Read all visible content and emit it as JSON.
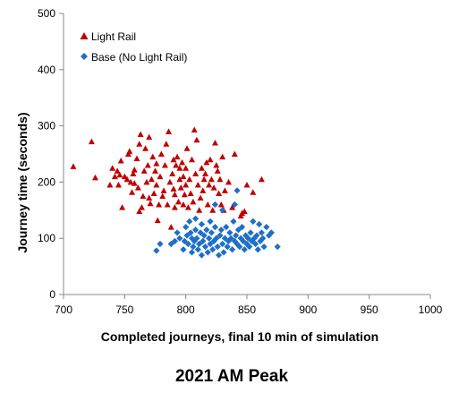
{
  "caption": "2021 AM Peak",
  "chart_data": {
    "type": "scatter",
    "title": "",
    "xlabel": "Completed journeys, final 10 min of simulation",
    "ylabel": "Journey time (seconds)",
    "xlim": [
      700,
      1000
    ],
    "ylim": [
      0,
      500
    ],
    "xticks": [
      700,
      750,
      800,
      850,
      900,
      950,
      1000
    ],
    "yticks": [
      0,
      100,
      200,
      300,
      400,
      500
    ],
    "grid": false,
    "legend_position": "top-left",
    "series": [
      {
        "name": "Light Rail",
        "marker": "triangle",
        "color": "#c00000",
        "points": [
          [
            708,
            228
          ],
          [
            723,
            272
          ],
          [
            726,
            208
          ],
          [
            738,
            195
          ],
          [
            740,
            225
          ],
          [
            742,
            210
          ],
          [
            744,
            220
          ],
          [
            745,
            195
          ],
          [
            746,
            213
          ],
          [
            747,
            238
          ],
          [
            748,
            155
          ],
          [
            750,
            210
          ],
          [
            752,
            205
          ],
          [
            753,
            250
          ],
          [
            754,
            255
          ],
          [
            755,
            200
          ],
          [
            756,
            182
          ],
          [
            757,
            215
          ],
          [
            758,
            222
          ],
          [
            758,
            198
          ],
          [
            760,
            242
          ],
          [
            761,
            190
          ],
          [
            762,
            148
          ],
          [
            762,
            268
          ],
          [
            763,
            285
          ],
          [
            764,
            155
          ],
          [
            765,
            175
          ],
          [
            766,
            220
          ],
          [
            767,
            260
          ],
          [
            768,
            200
          ],
          [
            769,
            230
          ],
          [
            770,
            172
          ],
          [
            770,
            280
          ],
          [
            771,
            162
          ],
          [
            772,
            205
          ],
          [
            773,
            245
          ],
          [
            774,
            180
          ],
          [
            775,
            220
          ],
          [
            776,
            233
          ],
          [
            776,
            195
          ],
          [
            777,
            132
          ],
          [
            778,
            160
          ],
          [
            779,
            210
          ],
          [
            780,
            250
          ],
          [
            781,
            175
          ],
          [
            782,
            185
          ],
          [
            783,
            230
          ],
          [
            784,
            268
          ],
          [
            785,
            160
          ],
          [
            786,
            290
          ],
          [
            787,
            200
          ],
          [
            788,
            120
          ],
          [
            789,
            215
          ],
          [
            790,
            188
          ],
          [
            790,
            240
          ],
          [
            791,
            178
          ],
          [
            791,
            155
          ],
          [
            792,
            230
          ],
          [
            793,
            245
          ],
          [
            794,
            165
          ],
          [
            795,
            205
          ],
          [
            795,
            225
          ],
          [
            796,
            190
          ],
          [
            797,
            235
          ],
          [
            798,
            210
          ],
          [
            798,
            160
          ],
          [
            799,
            178
          ],
          [
            800,
            195
          ],
          [
            800,
            225
          ],
          [
            801,
            260
          ],
          [
            802,
            155
          ],
          [
            803,
            205
          ],
          [
            804,
            180
          ],
          [
            805,
            240
          ],
          [
            806,
            165
          ],
          [
            807,
            293
          ],
          [
            808,
            215
          ],
          [
            809,
            275
          ],
          [
            810,
            195
          ],
          [
            811,
            150
          ],
          [
            812,
            172
          ],
          [
            813,
            225
          ],
          [
            814,
            185
          ],
          [
            815,
            205
          ],
          [
            816,
            215
          ],
          [
            817,
            235
          ],
          [
            818,
            160
          ],
          [
            819,
            195
          ],
          [
            820,
            240
          ],
          [
            821,
            205
          ],
          [
            822,
            150
          ],
          [
            823,
            190
          ],
          [
            824,
            270
          ],
          [
            825,
            230
          ],
          [
            826,
            220
          ],
          [
            827,
            180
          ],
          [
            828,
            205
          ],
          [
            829,
            160
          ],
          [
            830,
            245
          ],
          [
            831,
            150
          ],
          [
            832,
            185
          ],
          [
            835,
            200
          ],
          [
            838,
            155
          ],
          [
            840,
            250
          ],
          [
            845,
            140
          ],
          [
            846,
            145
          ],
          [
            848,
            148
          ],
          [
            850,
            195
          ],
          [
            855,
            182
          ],
          [
            862,
            205
          ]
        ]
      },
      {
        "name": "Base (No Light Rail)",
        "marker": "diamond",
        "color": "#1f6fc6",
        "points": [
          [
            776,
            78
          ],
          [
            779,
            90
          ],
          [
            788,
            90
          ],
          [
            791,
            95
          ],
          [
            793,
            110
          ],
          [
            795,
            100
          ],
          [
            798,
            80
          ],
          [
            799,
            95
          ],
          [
            800,
            120
          ],
          [
            801,
            105
          ],
          [
            802,
            90
          ],
          [
            803,
            130
          ],
          [
            804,
            110
          ],
          [
            805,
            100
          ],
          [
            805,
            75
          ],
          [
            806,
            85
          ],
          [
            807,
            95
          ],
          [
            808,
            115
          ],
          [
            808,
            135
          ],
          [
            809,
            100
          ],
          [
            810,
            80
          ],
          [
            811,
            90
          ],
          [
            812,
            110
          ],
          [
            813,
            70
          ],
          [
            813,
            125
          ],
          [
            814,
            95
          ],
          [
            815,
            105
          ],
          [
            816,
            85
          ],
          [
            817,
            115
          ],
          [
            818,
            75
          ],
          [
            819,
            100
          ],
          [
            820,
            90
          ],
          [
            820,
            130
          ],
          [
            821,
            110
          ],
          [
            822,
            80
          ],
          [
            823,
            95
          ],
          [
            824,
            160
          ],
          [
            824,
            120
          ],
          [
            825,
            100
          ],
          [
            826,
            85
          ],
          [
            827,
            70
          ],
          [
            828,
            105
          ],
          [
            829,
            115
          ],
          [
            830,
            90
          ],
          [
            830,
            150
          ],
          [
            831,
            75
          ],
          [
            832,
            100
          ],
          [
            833,
            120
          ],
          [
            834,
            85
          ],
          [
            835,
            95
          ],
          [
            836,
            110
          ],
          [
            837,
            100
          ],
          [
            838,
            80
          ],
          [
            839,
            130
          ],
          [
            840,
            95
          ],
          [
            841,
            105
          ],
          [
            842,
            90
          ],
          [
            843,
            115
          ],
          [
            844,
            85
          ],
          [
            845,
            100
          ],
          [
            846,
            120
          ],
          [
            847,
            95
          ],
          [
            848,
            80
          ],
          [
            849,
            105
          ],
          [
            850,
            90
          ],
          [
            851,
            100
          ],
          [
            852,
            85
          ],
          [
            853,
            110
          ],
          [
            854,
            95
          ],
          [
            855,
            130
          ],
          [
            856,
            100
          ],
          [
            857,
            90
          ],
          [
            858,
            105
          ],
          [
            859,
            80
          ],
          [
            860,
            125
          ],
          [
            861,
            95
          ],
          [
            862,
            110
          ],
          [
            863,
            100
          ],
          [
            864,
            85
          ],
          [
            866,
            120
          ],
          [
            868,
            105
          ],
          [
            870,
            110
          ],
          [
            875,
            85
          ],
          [
            842,
            185
          ],
          [
            840,
            160
          ]
        ]
      }
    ]
  }
}
